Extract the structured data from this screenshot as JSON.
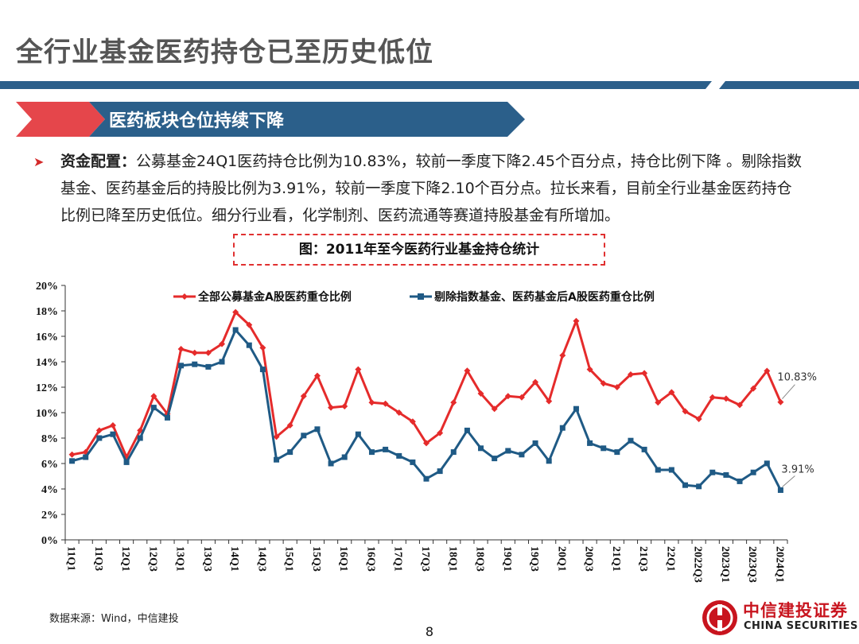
{
  "page": {
    "title": "全行业基金医药持仓已至历史低位",
    "section_title": "医药板块仓位持续下降",
    "bullet_lead": "资金配置：",
    "bullet_text": "公募基金24Q1医药持仓比例为10.83%，较前一季度下降2.45个百分点，持仓比例下降 。剔除指数基金、医药基金后的持股比例为3.91%，较前一季度下降2.10个百分点。拉长来看，目前全行业基金医药持仓比例已降至历史低位。细分行业看，化学制剂、医药流通等赛道持股基金有所增加。",
    "figure_caption": "图：2011年至今医药行业基金持仓统计",
    "source": "数据来源：Wind，中信建投",
    "page_number": "8"
  },
  "logo": {
    "name_cn": "中信建投证券",
    "name_en": "CHINA SECURITIES"
  },
  "colors": {
    "title_bar": "#2b5f8a",
    "banner": "#2b5f8a",
    "banner_arrow": "#e5464b",
    "series1": "#e52b2b",
    "series2": "#1f5a85"
  },
  "chart_data": {
    "type": "line",
    "title": "",
    "ylabel": "",
    "xlabel": "",
    "ylim": [
      0,
      20
    ],
    "yticks": [
      "0%",
      "2%",
      "4%",
      "6%",
      "8%",
      "10%",
      "12%",
      "14%",
      "16%",
      "18%",
      "20%"
    ],
    "legend_position": "top",
    "categories": [
      "11Q1",
      "11Q2",
      "11Q3",
      "11Q4",
      "12Q1",
      "12Q2",
      "12Q3",
      "12Q4",
      "13Q1",
      "13Q2",
      "13Q3",
      "13Q4",
      "14Q1",
      "14Q2",
      "14Q3",
      "14Q4",
      "15Q1",
      "15Q2",
      "15Q3",
      "15Q4",
      "16Q1",
      "16Q2",
      "16Q3",
      "16Q4",
      "17Q1",
      "17Q2",
      "17Q3",
      "17Q4",
      "18Q1",
      "18Q2",
      "18Q3",
      "18Q4",
      "19Q1",
      "19Q2",
      "19Q3",
      "19Q4",
      "20Q1",
      "20Q2",
      "20Q3",
      "20Q4",
      "21Q1",
      "21Q2",
      "21Q3",
      "21Q4",
      "22Q1",
      "22Q2",
      "2022Q3",
      "2022Q4",
      "2023Q1",
      "2023Q2",
      "2023Q3",
      "2023Q4",
      "2024Q1"
    ],
    "tick_labels": [
      "11Q1",
      "11Q3",
      "12Q1",
      "12Q3",
      "13Q1",
      "13Q3",
      "14Q1",
      "14Q3",
      "15Q1",
      "15Q3",
      "16Q1",
      "16Q3",
      "17Q1",
      "17Q3",
      "18Q1",
      "18Q3",
      "19Q1",
      "19Q3",
      "20Q1",
      "20Q3",
      "21Q1",
      "21Q3",
      "22Q1",
      "2022Q3",
      "2023Q1",
      "2023Q3",
      "2024Q1"
    ],
    "series": [
      {
        "name": "全部公募基金A股医药重仓比例",
        "color": "#e52b2b",
        "marker": "diamond",
        "values": [
          6.7,
          6.9,
          8.6,
          9.0,
          6.5,
          8.6,
          11.3,
          9.9,
          15.0,
          14.7,
          14.7,
          15.4,
          17.9,
          16.9,
          15.1,
          8.1,
          9.0,
          11.3,
          12.9,
          10.4,
          10.5,
          13.4,
          10.8,
          10.7,
          10.0,
          9.3,
          7.6,
          8.4,
          10.8,
          13.3,
          11.5,
          10.3,
          11.3,
          11.2,
          12.4,
          10.9,
          14.5,
          17.2,
          13.4,
          12.3,
          12.0,
          13.0,
          13.1,
          10.8,
          11.6,
          10.1,
          9.5,
          11.2,
          11.1,
          10.6,
          11.9,
          13.28,
          10.83
        ]
      },
      {
        "name": "剔除指数基金、医药基金后A股医药重仓比例",
        "color": "#1f5a85",
        "marker": "square",
        "values": [
          6.2,
          6.5,
          8.0,
          8.3,
          6.1,
          8.0,
          10.4,
          9.6,
          13.7,
          13.8,
          13.6,
          14.0,
          16.5,
          15.3,
          13.4,
          6.3,
          6.9,
          8.2,
          8.7,
          6.0,
          6.5,
          8.3,
          6.9,
          7.1,
          6.6,
          6.1,
          4.8,
          5.4,
          6.9,
          8.6,
          7.2,
          6.4,
          7.0,
          6.7,
          7.6,
          6.2,
          8.8,
          10.3,
          7.6,
          7.2,
          6.9,
          7.8,
          7.1,
          5.5,
          5.5,
          4.3,
          4.2,
          5.3,
          5.1,
          4.6,
          5.3,
          6.01,
          3.91
        ]
      }
    ],
    "annotations": [
      "10.83%",
      "3.91%"
    ]
  }
}
